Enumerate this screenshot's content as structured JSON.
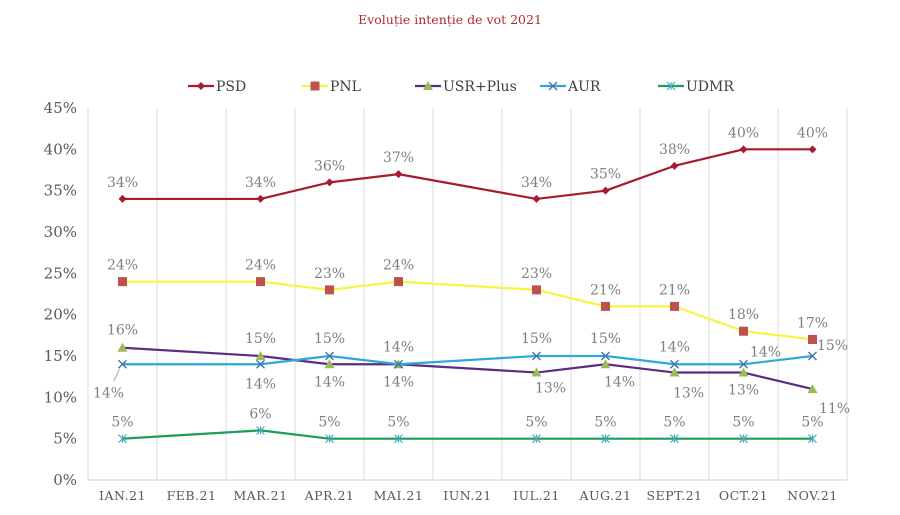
{
  "chart_data": {
    "type": "line",
    "title": "Evoluție intenție de vot 2021",
    "xlabel": "",
    "ylabel": "",
    "categories": [
      "IAN.21",
      "FEB.21",
      "MAR.21",
      "APR.21",
      "MAI.21",
      "IUN.21",
      "IUL.21",
      "AUG.21",
      "SEPT.21",
      "OCT.21",
      "NOV.21"
    ],
    "ylim": [
      0,
      45
    ],
    "yticks": [
      0,
      5,
      10,
      15,
      20,
      25,
      30,
      35,
      40,
      45
    ],
    "ytick_labels": [
      "0%",
      "5%",
      "10%",
      "15%",
      "20%",
      "25%",
      "30%",
      "35%",
      "40%",
      "45%"
    ],
    "grid": "vertical",
    "legend_position": "top",
    "series": [
      {
        "name": "PSD",
        "color": "#a61c2e",
        "marker": "diamond",
        "marker_color": "#a61c2e",
        "values": [
          34,
          null,
          34,
          36,
          37,
          null,
          34,
          35,
          38,
          40,
          40
        ]
      },
      {
        "name": "PNL",
        "color": "#f5f542",
        "marker": "square",
        "marker_color": "#c0504d",
        "values": [
          24,
          null,
          24,
          23,
          24,
          null,
          23,
          21,
          21,
          18,
          17
        ]
      },
      {
        "name": "USR+Plus",
        "color": "#5b2d82",
        "marker": "triangle",
        "marker_color": "#9bbb59",
        "values": [
          16,
          null,
          15,
          14,
          14,
          null,
          13,
          14,
          13,
          13,
          11
        ]
      },
      {
        "name": "AUR",
        "color": "#2ea8d8",
        "marker": "x",
        "marker_color": "#4a6fa5",
        "values": [
          14,
          null,
          14,
          15,
          14,
          null,
          15,
          15,
          14,
          14,
          15
        ]
      },
      {
        "name": "UDMR",
        "color": "#1e9c5a",
        "marker": "star",
        "marker_color": "#4bacc6",
        "values": [
          5,
          null,
          6,
          5,
          5,
          null,
          5,
          5,
          5,
          5,
          5
        ]
      }
    ],
    "value_format": "%"
  }
}
